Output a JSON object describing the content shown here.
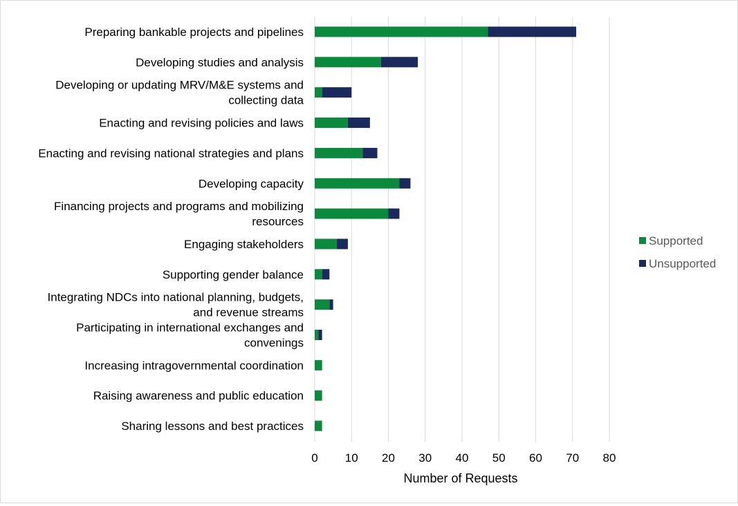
{
  "chart_data": {
    "type": "bar",
    "orientation": "horizontal",
    "stacked": true,
    "title": "",
    "xlabel": "Number  of Requests",
    "ylabel": "",
    "xlim": [
      0,
      80
    ],
    "xticks": [
      0,
      10,
      20,
      30,
      40,
      50,
      60,
      70,
      80
    ],
    "grid": "vertical",
    "legend_position": "right",
    "categories": [
      "Preparing bankable projects and pipelines",
      "Developing studies and analysis",
      "Developing or updating MRV/M&E systems and collecting data",
      "Enacting and revising policies and laws",
      "Enacting and revising national strategies and plans",
      "Developing capacity",
      "Financing projects and programs and mobilizing resources",
      "Engaging stakeholders",
      "Supporting gender balance",
      "Integrating NDCs into national planning, budgets, and revenue streams",
      "Participating in international exchanges and convenings",
      "Increasing intragovernmental coordination",
      "Raising awareness and public education",
      "Sharing lessons and best practices"
    ],
    "category_lines": [
      [
        "Preparing bankable projects and pipelines"
      ],
      [
        "Developing studies and analysis"
      ],
      [
        "Developing or updating MRV/M&E systems and",
        "collecting data"
      ],
      [
        "Enacting and revising policies and laws"
      ],
      [
        "Enacting and revising national strategies and plans"
      ],
      [
        "Developing capacity"
      ],
      [
        "Financing projects and programs and mobilizing",
        "resources"
      ],
      [
        "Engaging stakeholders"
      ],
      [
        "Supporting gender balance"
      ],
      [
        "Integrating NDCs into national planning, budgets,",
        "and revenue streams"
      ],
      [
        "Participating in international exchanges and",
        "convenings"
      ],
      [
        "Increasing intragovernmental coordination"
      ],
      [
        "Raising awareness and public education"
      ],
      [
        "Sharing lessons and best practices"
      ]
    ],
    "series": [
      {
        "name": "Supported",
        "color": "#0b8a3e",
        "values": [
          47,
          18,
          2,
          9,
          13,
          23,
          20,
          6,
          2,
          4,
          1,
          2,
          2,
          2
        ]
      },
      {
        "name": "Unsupported",
        "color": "#1b2a5c",
        "values": [
          24,
          10,
          8,
          6,
          4,
          3,
          3,
          3,
          2,
          1,
          1,
          0,
          0,
          0
        ]
      }
    ]
  }
}
